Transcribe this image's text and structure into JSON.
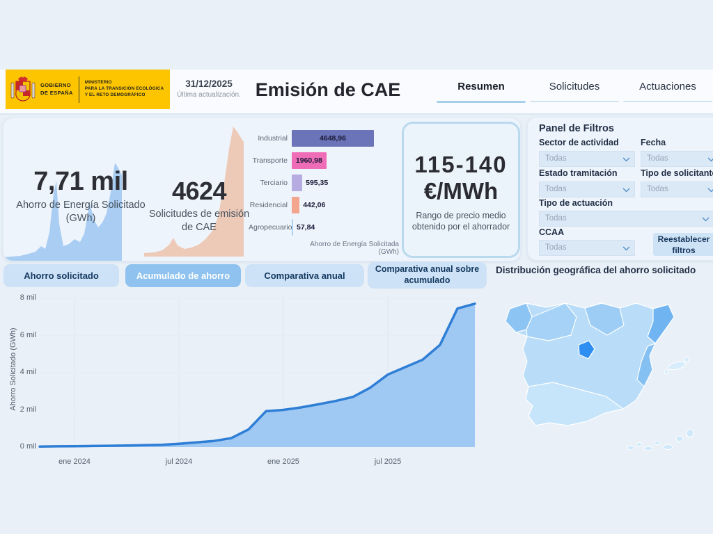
{
  "header": {
    "logo": {
      "gov_line1": "GOBIERNO",
      "gov_line2": "DE ESPAÑA",
      "ministry_line1": "MINISTERIO",
      "ministry_line2": "PARA LA TRANSICIÓN ECOLÓGICA",
      "ministry_line3": "Y EL RETO DEMOGRÁFICO"
    },
    "update": {
      "date": "31/12/2025",
      "label": "Última actualización."
    },
    "title": "Emisión de CAE",
    "tabs": [
      {
        "label": "Resumen",
        "active": true
      },
      {
        "label": "Solicitudes",
        "active": false
      },
      {
        "label": "Actuaciones",
        "active": false
      }
    ]
  },
  "kpis": [
    {
      "value": "7,71 mil",
      "label": "Ahorro de Energía Solicitado (GWh)"
    },
    {
      "value": "4624",
      "label": "Solicitudes de emisión de CAE"
    }
  ],
  "price_card": {
    "value": "115-140",
    "unit": "€/MWh",
    "caption": "Rango de precio medio obtenido por el ahorrador"
  },
  "filters": {
    "title": "Panel de Filtros",
    "fields": [
      {
        "label": "Sector de actividad",
        "value": "Todas"
      },
      {
        "label": "Fecha",
        "value": "Todas"
      },
      {
        "label": "Estado tramitación",
        "value": "Todas"
      },
      {
        "label": "Tipo de solicitante",
        "value": "Todas"
      },
      {
        "label": "Tipo de actuación",
        "value": "Todas"
      },
      {
        "label": "CCAA",
        "value": "Todas"
      }
    ],
    "reset_button": "Reestablecer filtros"
  },
  "section_tabs": [
    {
      "label": "Ahorro solicitado",
      "active": false
    },
    {
      "label": "Acumulado de ahorro",
      "active": true
    },
    {
      "label": "Comparativa anual",
      "active": false
    },
    {
      "label": "Comparativa anual sobre acumulado",
      "active": false
    }
  ],
  "map": {
    "title": "Distribución geográfica del ahorro solicitado"
  },
  "theme": {
    "page_bg": "#e9f0f7",
    "logo_yellow": "#fdc500",
    "active_tab_underline": "#a6cfea",
    "active_section_tab_bg": "#8fc2ee",
    "line_color": "#2f7ed6",
    "line_fill": "#9fc9f3",
    "spark_blue": "#a9cdf3",
    "spark_salmon": "#edcab8",
    "map_highlight": "#2f8ef2"
  },
  "chart_data": [
    {
      "type": "bar",
      "name": "ahorro-por-sector",
      "orientation": "horizontal",
      "categories": [
        "Industrial",
        "Transporte",
        "Terciario",
        "Residencial",
        "Agropecuario"
      ],
      "values": [
        4648.96,
        1960.98,
        595.35,
        442.06,
        57.84
      ],
      "value_labels": [
        "4648,96",
        "1960,98",
        "595,35",
        "442,06",
        "57,84"
      ],
      "colors": [
        "#6b74b8",
        "#ef6cb7",
        "#b6ace2",
        "#f3a68e",
        "#a9d3f2"
      ],
      "xlabel": "Ahorro de Energía Solicitada (GWh)"
    },
    {
      "type": "area",
      "name": "acumulado-de-ahorro",
      "ylabel": "Ahorro Solicitado (GWh)",
      "ylim": [
        0,
        8000
      ],
      "x": [
        "nov 2023",
        "dic 2023",
        "ene 2024",
        "feb 2024",
        "mar 2024",
        "abr 2024",
        "may 2024",
        "jun 2024",
        "jul 2024",
        "ago 2024",
        "sep 2024",
        "oct 2024",
        "nov 2024",
        "dic 2024",
        "ene 2025",
        "feb 2025",
        "mar 2025",
        "abr 2025",
        "may 2025",
        "jun 2025",
        "jul 2025",
        "ago 2025",
        "sep 2025",
        "oct 2025",
        "nov 2025",
        "dic 2025"
      ],
      "values_gwh": [
        30,
        40,
        50,
        60,
        70,
        85,
        100,
        120,
        180,
        250,
        330,
        480,
        950,
        1930,
        2000,
        2130,
        2300,
        2480,
        2700,
        3200,
        3900,
        4300,
        4700,
        5500,
        7450,
        7710
      ],
      "x_tick_labels": [
        "ene 2024",
        "jul 2024",
        "ene 2025",
        "jul 2025"
      ],
      "y_tick_labels": [
        "0 mil",
        "2 mil",
        "4 mil",
        "6 mil",
        "8 mil"
      ],
      "y_tick_values": [
        0,
        2000,
        4000,
        6000,
        8000
      ],
      "grid": "light",
      "legend": "none"
    },
    {
      "type": "area",
      "name": "sparkline-ahorro-solicitado",
      "polygon": [
        [
          0,
          140
        ],
        [
          12,
          139
        ],
        [
          24,
          138
        ],
        [
          36,
          135
        ],
        [
          46,
          132
        ],
        [
          54,
          124
        ],
        [
          60,
          128
        ],
        [
          66,
          104
        ],
        [
          72,
          48
        ],
        [
          76,
          30
        ],
        [
          80,
          92
        ],
        [
          86,
          124
        ],
        [
          94,
          121
        ],
        [
          102,
          114
        ],
        [
          110,
          118
        ],
        [
          116,
          106
        ],
        [
          124,
          62
        ],
        [
          130,
          86
        ],
        [
          136,
          97
        ],
        [
          142,
          90
        ],
        [
          148,
          77
        ],
        [
          154,
          46
        ],
        [
          160,
          4
        ],
        [
          164,
          10
        ],
        [
          170,
          22
        ],
        [
          170,
          145
        ],
        [
          0,
          145
        ]
      ]
    },
    {
      "type": "area",
      "name": "sparkline-solicitudes",
      "polygon": [
        [
          0,
          190
        ],
        [
          14,
          189
        ],
        [
          26,
          186
        ],
        [
          36,
          178
        ],
        [
          42,
          168
        ],
        [
          48,
          179
        ],
        [
          58,
          184
        ],
        [
          68,
          182
        ],
        [
          78,
          178
        ],
        [
          88,
          170
        ],
        [
          98,
          158
        ],
        [
          106,
          138
        ],
        [
          114,
          96
        ],
        [
          122,
          40
        ],
        [
          128,
          8
        ],
        [
          134,
          16
        ],
        [
          139,
          24
        ],
        [
          143,
          30
        ],
        [
          143,
          195
        ],
        [
          0,
          195
        ]
      ]
    }
  ]
}
